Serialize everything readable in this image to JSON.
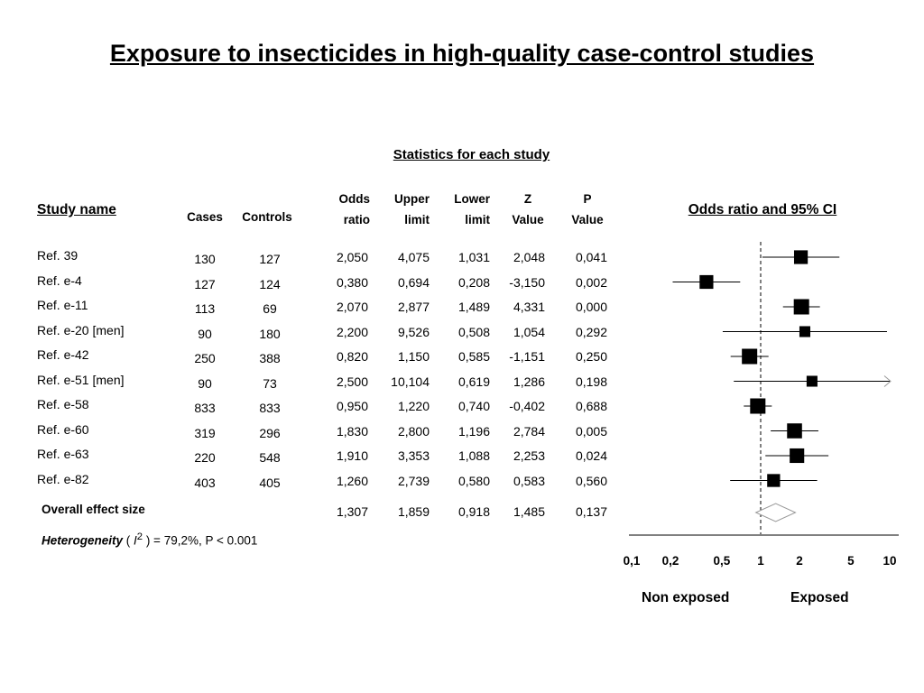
{
  "title": "Exposure to insecticides in high-quality case-control studies",
  "stats_header": "Statistics for each study",
  "columns": {
    "study_name": "Study name",
    "cases": "Cases",
    "controls": "Controls",
    "odds_ratio": [
      "Odds",
      "ratio"
    ],
    "upper_limit": [
      "Upper",
      "limit"
    ],
    "lower_limit": [
      "Lower",
      "limit"
    ],
    "z_value": [
      "Z",
      "Value"
    ],
    "p_value": [
      "P",
      "Value"
    ]
  },
  "studies": [
    {
      "name": "Ref. 39",
      "cases": "130",
      "controls": "127",
      "or": "2,050",
      "upper": "4,075",
      "lower": "1,031",
      "z": "2,048",
      "p": "0,041"
    },
    {
      "name": "Ref. e-4",
      "cases": "127",
      "controls": "124",
      "or": "0,380",
      "upper": "0,694",
      "lower": "0,208",
      "z": "-3,150",
      "p": "0,002"
    },
    {
      "name": "Ref. e-11",
      "cases": "113",
      "controls": "69",
      "or": "2,070",
      "upper": "2,877",
      "lower": "1,489",
      "z": "4,331",
      "p": "0,000"
    },
    {
      "name": "Ref. e-20 [men]",
      "cases": "90",
      "controls": "180",
      "or": "2,200",
      "upper": "9,526",
      "lower": "0,508",
      "z": "1,054",
      "p": "0,292"
    },
    {
      "name": "Ref. e-42",
      "cases": "250",
      "controls": "388",
      "or": "0,820",
      "upper": "1,150",
      "lower": "0,585",
      "z": "-1,151",
      "p": "0,250"
    },
    {
      "name": "Ref. e-51 [men]",
      "cases": "90",
      "controls": "73",
      "or": "2,500",
      "upper": "10,104",
      "lower": "0,619",
      "z": "1,286",
      "p": "0,198"
    },
    {
      "name": "Ref. e-58",
      "cases": "833",
      "controls": "833",
      "or": "0,950",
      "upper": "1,220",
      "lower": "0,740",
      "z": "-0,402",
      "p": "0,688"
    },
    {
      "name": "Ref. e-60",
      "cases": "319",
      "controls": "296",
      "or": "1,830",
      "upper": "2,800",
      "lower": "1,196",
      "z": "2,784",
      "p": "0,005"
    },
    {
      "name": "Ref. e-63",
      "cases": "220",
      "controls": "548",
      "or": "1,910",
      "upper": "3,353",
      "lower": "1,088",
      "z": "2,253",
      "p": "0,024"
    },
    {
      "name": "Ref. e-82",
      "cases": "403",
      "controls": "405",
      "or": "1,260",
      "upper": "2,739",
      "lower": "0,580",
      "z": "0,583",
      "p": "0,560"
    }
  ],
  "overall": {
    "label": "Overall effect size",
    "or": "1,307",
    "upper": "1,859",
    "lower": "0,918",
    "z": "1,485",
    "p": "0,137"
  },
  "heterogeneity": {
    "label": "Heterogeneity",
    "open": " ( ",
    "symbol": "I",
    "sup": "2",
    "rest": " ) = 79,2%, P < 0.001"
  },
  "chart_data": {
    "type": "forest",
    "title": "Odds ratio and 95% CI",
    "scale": "log",
    "xlim": [
      0.1,
      10
    ],
    "reference_line": 1,
    "ticks": [
      {
        "value": 0.1,
        "label": "0,1"
      },
      {
        "value": 0.2,
        "label": "0,2"
      },
      {
        "value": 0.5,
        "label": "0,5"
      },
      {
        "value": 1,
        "label": "1"
      },
      {
        "value": 2,
        "label": "2"
      },
      {
        "value": 5,
        "label": "5"
      },
      {
        "value": 10,
        "label": "10"
      }
    ],
    "left_label": "Non exposed",
    "right_label": "Exposed",
    "points": [
      {
        "study": "Ref. 39",
        "or": 2.05,
        "lower": 1.031,
        "upper": 4.075,
        "weight": 0.8
      },
      {
        "study": "Ref. e-4",
        "or": 0.38,
        "lower": 0.208,
        "upper": 0.694,
        "weight": 0.8
      },
      {
        "study": "Ref. e-11",
        "or": 2.07,
        "lower": 1.489,
        "upper": 2.877,
        "weight": 1.0
      },
      {
        "study": "Ref. e-20 [men]",
        "or": 2.2,
        "lower": 0.508,
        "upper": 9.526,
        "weight": 0.45
      },
      {
        "study": "Ref. e-42",
        "or": 0.82,
        "lower": 0.585,
        "upper": 1.15,
        "weight": 1.0
      },
      {
        "study": "Ref. e-51 [men]",
        "or": 2.5,
        "lower": 0.619,
        "upper": 10.104,
        "weight": 0.45
      },
      {
        "study": "Ref. e-58",
        "or": 0.95,
        "lower": 0.74,
        "upper": 1.22,
        "weight": 1.0
      },
      {
        "study": "Ref. e-60",
        "or": 1.83,
        "lower": 1.196,
        "upper": 2.8,
        "weight": 0.95
      },
      {
        "study": "Ref. e-63",
        "or": 1.91,
        "lower": 1.088,
        "upper": 3.353,
        "weight": 0.9
      },
      {
        "study": "Ref. e-82",
        "or": 1.26,
        "lower": 0.58,
        "upper": 2.739,
        "weight": 0.7
      }
    ],
    "summary": {
      "or": 1.307,
      "lower": 0.918,
      "upper": 1.859
    }
  }
}
